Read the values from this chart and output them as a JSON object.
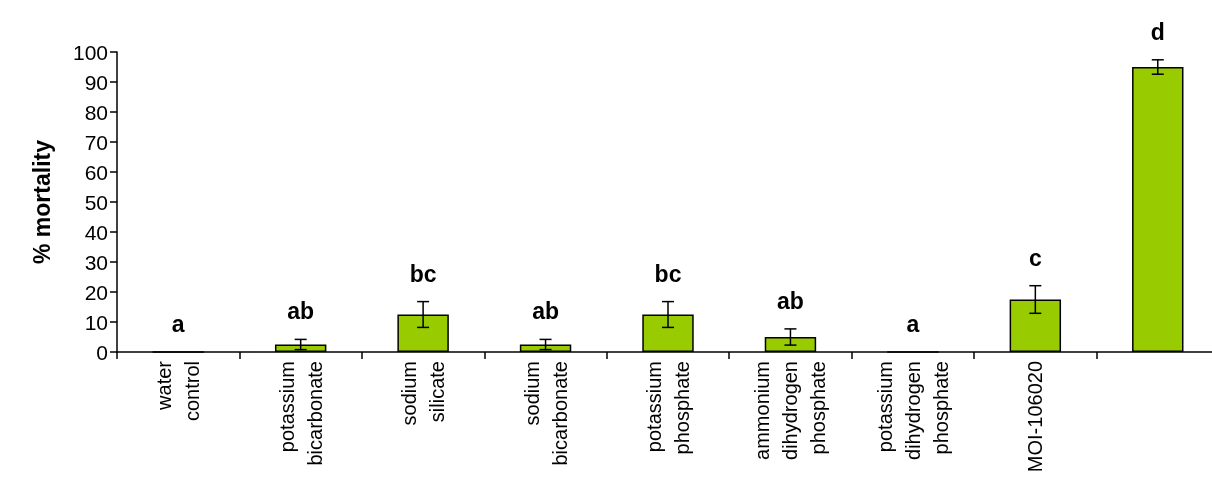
{
  "chart_data": {
    "type": "bar",
    "ylabel": "% mortality",
    "categories": [
      "water control",
      "potassium bicarbonate",
      "sodium silicate",
      "sodium bicarbonate",
      "potassium phosphate",
      "ammonium dihydrogen phosphate",
      "potassium dihydrogen phosphate",
      "MOI-106020",
      null
    ],
    "values": [
      0,
      2.5,
      12.5,
      2.5,
      12.5,
      5,
      0,
      17.5,
      95
    ],
    "errors": [
      null,
      1.7,
      4.3,
      1.7,
      4.3,
      2.7,
      null,
      4.6,
      2.4
    ],
    "color": "#99cc00",
    "ylim": [
      0,
      100
    ],
    "yticks": [
      0,
      10,
      20,
      30,
      40,
      50,
      60,
      70,
      80,
      90,
      100
    ],
    "grid": false,
    "annotations": [
      "a",
      "ab",
      "bc",
      "ab",
      "bc",
      "ab",
      "a",
      "c",
      "d"
    ]
  }
}
